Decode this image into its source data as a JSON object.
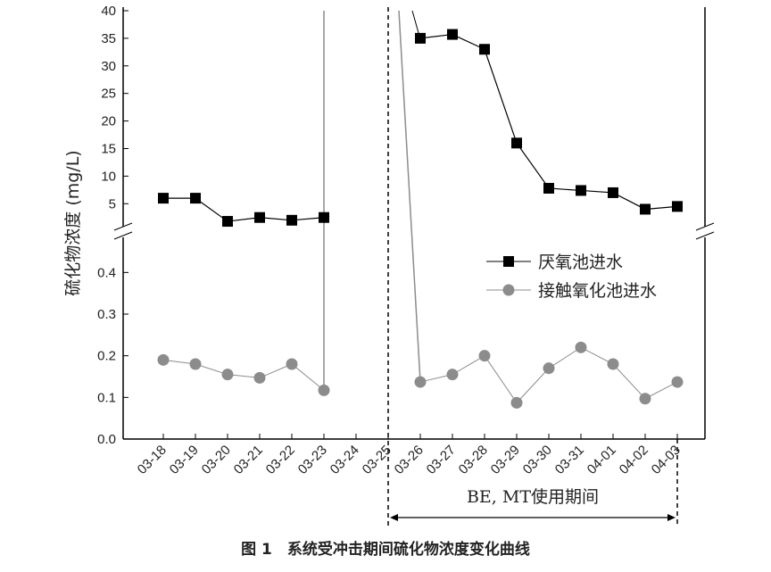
{
  "chart_data": {
    "type": "line",
    "y_label": "硫化物浓度 (mg/L)",
    "categories": [
      "03-18",
      "03-19",
      "03-20",
      "03-21",
      "03-22",
      "03-23",
      "03-24",
      "03-25",
      "03-26",
      "03-27",
      "03-28",
      "03-29",
      "03-30",
      "03-31",
      "04-01",
      "04-02",
      "04-03"
    ],
    "series": [
      {
        "name": "厌氧池进水",
        "color": "#000000",
        "marker": "square",
        "axis": "y2",
        "values": [
          6,
          6,
          1.8,
          2.5,
          2,
          2.5,
          null,
          null,
          35,
          35.7,
          33,
          16,
          7.8,
          7.4,
          7,
          4,
          4.5
        ]
      },
      {
        "name": "接触氧化池进水",
        "color": "#8c8c8c",
        "marker": "circle",
        "values": [
          0.19,
          0.18,
          0.155,
          0.147,
          0.18,
          0.117,
          null,
          null,
          0.137,
          0.155,
          0.2,
          0.087,
          0.17,
          0.22,
          0.18,
          0.097,
          0.137
        ]
      }
    ],
    "ylim": [
      0,
      0.48
    ],
    "yticks": [
      {
        "value": 0,
        "label": "0.0"
      },
      0.1,
      0.2,
      0.3,
      0.4
    ],
    "y2lim": [
      1,
      40
    ],
    "y2ticks": [
      5,
      10,
      15,
      20,
      25,
      30,
      35,
      40
    ],
    "annotation": "BE, MT使用期间",
    "caption": "图 1　系统受冲击期间硫化物浓度变化曲线"
  }
}
